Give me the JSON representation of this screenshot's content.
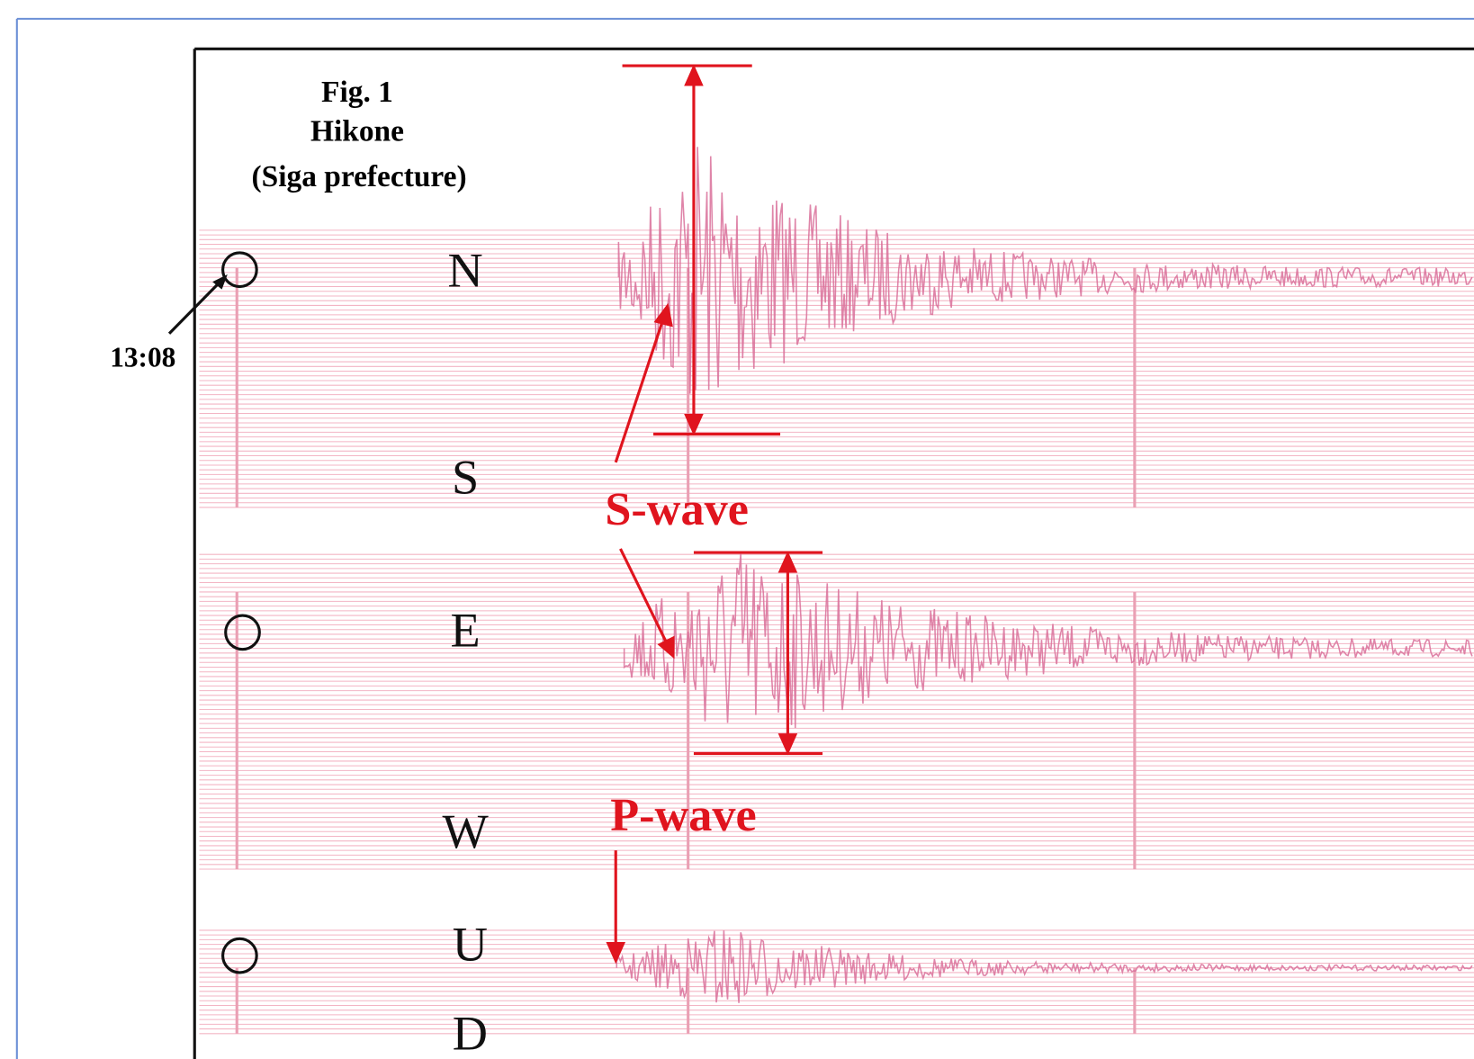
{
  "figure": {
    "title": "Fig. 1",
    "station": "Hikone",
    "region": "(Siga prefecture)"
  },
  "time_mark": "13:08",
  "directions": [
    "N",
    "S",
    "E",
    "W",
    "U",
    "D"
  ],
  "annotations": {
    "s_wave": "S-wave",
    "p_wave": "P-wave"
  }
}
